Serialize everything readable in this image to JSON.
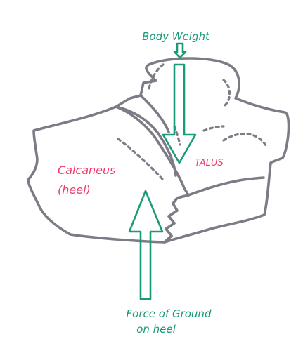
{
  "labels": {
    "body_weight": "Body Weight",
    "force_line1": "Force of Ground",
    "force_line2": "on heel",
    "calcaneus_line1": "Calcaneus",
    "calcaneus_line2": "(heel)",
    "talus": "TALUS"
  },
  "colors": {
    "arrow_text": "#1a9a78",
    "bone_label": "#ec3d6c",
    "bone_outline": "#7f7b86",
    "background": "#ffffff"
  }
}
